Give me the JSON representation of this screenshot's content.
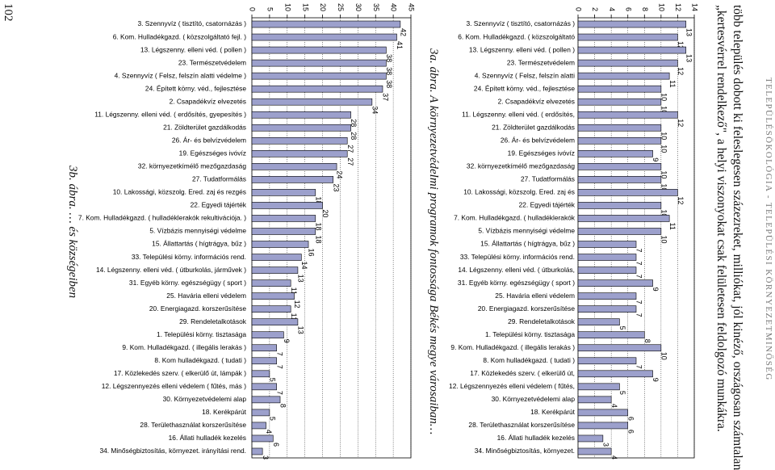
{
  "page_number": "102",
  "header": "TELEPÜLÉSÖKOLÓGIA - TELEPÜLÉSI KÖRNYEZETMINŐSÉG",
  "body_lines": [
    "több település dobott ki feleslegesen százezreket, milliókat, jól kinéző, országosan számtalan",
    "„kertesvérrel rendelkező\", a helyi viszonyokat csak felületesen feldolgozó munkákra."
  ],
  "captions": {
    "a": "3a. ábra. A környezetvédelmi programok fontossága Békés megye városaiban…",
    "b": "3b. ábra. … és községeiben"
  },
  "chart_data": [
    {
      "type": "bar",
      "title": "3a. ábra. A környezetvédelmi programok fontossága Békés megye városaiban…",
      "categories": [
        "3. Szennyvíz ( tisztító, csatornázás )",
        "6. Kom. Hulladékgazd. ( közszolgáltató",
        "13. Légszenny. elleni véd. ( pollen )",
        "23. Természetvédelem",
        "4. Szennyvíz ( Felsz, felszín alatti",
        "24. Épített körny. véd., fejlesztése",
        "2. Csapadékvíz elvezetés",
        "11. Légszenny. elleni véd. ( erdősítés,",
        "21. Zöldterület gazdálkodás",
        "26. Ár- és belvízvédelem",
        "19. Egészséges ivóvíz",
        "32. környezetkímélő mezőgazdaság",
        "27. Tudatformálás",
        "10. Lakossági, közszolg. Ered. zaj és",
        "22. Egyedi tájérték",
        "7. Kom. Hulladékgazd. ( hulladéklerakók",
        "5. Vízbázis mennyiségi védelme",
        "15. Állattartás ( hígtrágya, bűz )",
        "33. Települési körny. információs rend.",
        "14. Légszenny. elleni véd. ( útburkolás,",
        "31. Egyéb körny. egészségügy ( sport )",
        "25. Havária elleni védelem",
        "20. Energiagazd. korszerűsítése",
        "29. Rendeletalkotások",
        "1. Települési körny. tisztasága",
        "9. Kom. Hulladékgazd. ( illegális lerakás )",
        "8. Kom hulladékgazd. ( tudati )",
        "17. Közlekedés szerv. ( elkerülő út,",
        "12. Légszennyezés elleni védelem ( fűtés,",
        "30. Környezetvédelemi alap",
        "18. Kerékpárút",
        "28. Területhasználat korszerűsítése",
        "16. Állati hulladék kezelés",
        "34. Minőségbiztosítás, környezet."
      ],
      "values": [
        13,
        12,
        13,
        12,
        11,
        10,
        10,
        12,
        10,
        10,
        9,
        10,
        10,
        12,
        10,
        11,
        10,
        7,
        7,
        7,
        9,
        7,
        7,
        5,
        8,
        10,
        7,
        9,
        5,
        4,
        6,
        6,
        3,
        4
      ],
      "axis_ticks": [
        "0",
        "2",
        "4",
        "6",
        "8",
        "10",
        "12",
        "14"
      ],
      "ylim": [
        0,
        14
      ],
      "grid": true
    },
    {
      "type": "bar",
      "title": "3b. ábra. … és községeiben",
      "categories": [
        "3. Szennyvíz ( tisztító, csatornázás )",
        "6. Kom. Hulladékgazd. ( közszolgáltató fejl. )",
        "13. Légszenny. elleni véd. ( pollen )",
        "23. Természetvédelem",
        "4. Szennyvíz ( Felsz, felszín alatti védelme )",
        "24. Épített körny. véd., fejlesztése",
        "2. Csapadékvíz elvezetés",
        "11. Légszenny. elleni véd. ( erdősítés, gyepesítés )",
        "21. Zöldterület gazdálkodás",
        "26. Ár- és belvízvédelem",
        "19. Egészséges ivóvíz",
        "32. környezetkímélő mezőgazdaság",
        "27. Tudatformálás",
        "10. Lakossági, közszolg. Ered. zaj és rezgés",
        "22. Egyedi tájérték",
        "7. Kom. Hulladékgazd. ( hulladéklerakók rekultivációja. )",
        "5. Vízbázis mennyiségi védelme",
        "15. Állattartás ( hígtrágya, bűz )",
        "33. Települési körny. információs rend.",
        "14. Légszenny. elleni véd. ( útburkolás, járművek )",
        "31. Egyéb körny. egészségügy ( sport )",
        "25. Havária elleni védelem",
        "20. Energiagazd. korszerűsítése",
        "29. Rendeletalkotások",
        "1. Települési körny. tisztasága",
        "9. Kom. Hulladékgazd. ( illegális lerakás )",
        "8. Kom hulladékgazd. ( tudati )",
        "17. Közlekedés szerv. ( elkerülő út, lámpák )",
        "12. Légszennyezés elleni védelem ( fűtés, más )",
        "30. Környezetvédelemi alap",
        "18. Kerékpárút",
        "28. Területhasználat korszerűsítése",
        "16. Állati hulladék kezelés",
        "34. Minőségbiztosítás, környezet. irányítási rend."
      ],
      "values": [
        42,
        41,
        38,
        38,
        38,
        37,
        34,
        28,
        28,
        27,
        27,
        24,
        23,
        18,
        20,
        18,
        18,
        16,
        14,
        13,
        11,
        12,
        11,
        13,
        9,
        7,
        7,
        5,
        7,
        8,
        5,
        4,
        6,
        3
      ],
      "axis_ticks": [
        "0",
        "5",
        "10",
        "15",
        "20",
        "25",
        "30",
        "35",
        "40",
        "45"
      ],
      "ylim": [
        0,
        45
      ],
      "grid": true
    }
  ]
}
